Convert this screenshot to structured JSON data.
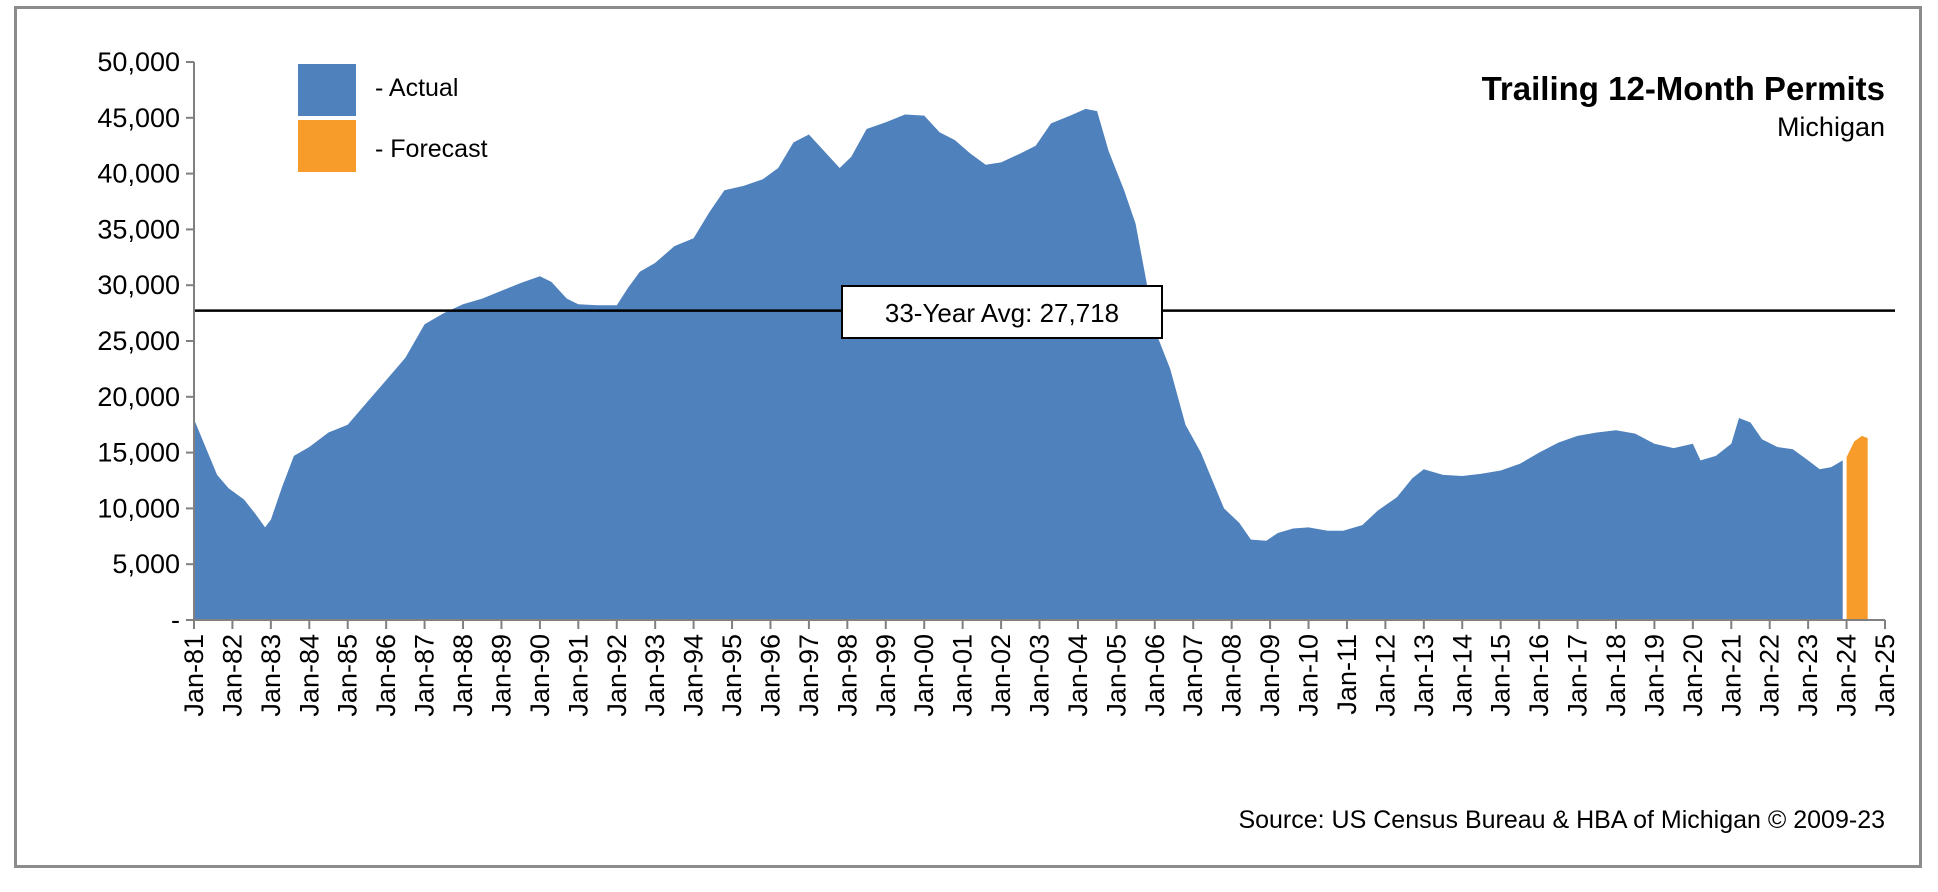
{
  "chart_data": {
    "type": "area",
    "title": "Trailing 12-Month Permits",
    "subtitle": "Michigan",
    "source": "Source: US Census Bureau & HBA of Michigan © 2009-23",
    "ylim": [
      0,
      50000
    ],
    "y_ticks": [
      {
        "value": 0,
        "label": "-"
      },
      {
        "value": 5000,
        "label": "5,000"
      },
      {
        "value": 10000,
        "label": "10,000"
      },
      {
        "value": 15000,
        "label": "15,000"
      },
      {
        "value": 20000,
        "label": "20,000"
      },
      {
        "value": 25000,
        "label": "25,000"
      },
      {
        "value": 30000,
        "label": "30,000"
      },
      {
        "value": 35000,
        "label": "35,000"
      },
      {
        "value": 40000,
        "label": "40,000"
      },
      {
        "value": 45000,
        "label": "45,000"
      },
      {
        "value": 50000,
        "label": "50,000"
      }
    ],
    "xlim": [
      1981,
      2025
    ],
    "x_ticks": [
      "Jan-81",
      "Jan-82",
      "Jan-83",
      "Jan-84",
      "Jan-85",
      "Jan-86",
      "Jan-87",
      "Jan-88",
      "Jan-89",
      "Jan-90",
      "Jan-91",
      "Jan-92",
      "Jan-93",
      "Jan-94",
      "Jan-95",
      "Jan-96",
      "Jan-97",
      "Jan-98",
      "Jan-99",
      "Jan-00",
      "Jan-01",
      "Jan-02",
      "Jan-03",
      "Jan-04",
      "Jan-05",
      "Jan-06",
      "Jan-07",
      "Jan-08",
      "Jan-09",
      "Jan-10",
      "Jan-11",
      "Jan-12",
      "Jan-13",
      "Jan-14",
      "Jan-15",
      "Jan-16",
      "Jan-17",
      "Jan-18",
      "Jan-19",
      "Jan-20",
      "Jan-21",
      "Jan-22",
      "Jan-23",
      "Jan-24",
      "Jan-25"
    ],
    "legend": [
      {
        "name": "- Actual",
        "color": "#4f81bd"
      },
      {
        "name": "- Forecast",
        "color": "#f79b2a"
      }
    ],
    "average": {
      "value": 27718,
      "label": "33-Year Avg: 27,718"
    },
    "series": [
      {
        "name": "Actual",
        "color": "#4f81bd",
        "points": [
          [
            1981.0,
            18000
          ],
          [
            1981.3,
            15500
          ],
          [
            1981.6,
            13000
          ],
          [
            1981.9,
            11800
          ],
          [
            1982.3,
            10800
          ],
          [
            1982.6,
            9500
          ],
          [
            1982.85,
            8300
          ],
          [
            1983.0,
            9000
          ],
          [
            1983.3,
            12000
          ],
          [
            1983.6,
            14700
          ],
          [
            1984.0,
            15500
          ],
          [
            1984.5,
            16800
          ],
          [
            1985.0,
            17500
          ],
          [
            1985.5,
            19500
          ],
          [
            1986.0,
            21500
          ],
          [
            1986.5,
            23500
          ],
          [
            1987.0,
            26500
          ],
          [
            1987.5,
            27500
          ],
          [
            1988.0,
            28300
          ],
          [
            1988.5,
            28800
          ],
          [
            1989.0,
            29500
          ],
          [
            1989.5,
            30200
          ],
          [
            1990.0,
            30800
          ],
          [
            1990.3,
            30300
          ],
          [
            1990.7,
            28800
          ],
          [
            1991.0,
            28300
          ],
          [
            1991.5,
            28200
          ],
          [
            1992.0,
            28200
          ],
          [
            1992.3,
            29800
          ],
          [
            1992.6,
            31200
          ],
          [
            1993.0,
            32000
          ],
          [
            1993.5,
            33500
          ],
          [
            1994.0,
            34200
          ],
          [
            1994.4,
            36500
          ],
          [
            1994.8,
            38500
          ],
          [
            1995.3,
            38900
          ],
          [
            1995.8,
            39500
          ],
          [
            1996.2,
            40500
          ],
          [
            1996.6,
            42800
          ],
          [
            1997.0,
            43500
          ],
          [
            1997.4,
            42000
          ],
          [
            1997.8,
            40500
          ],
          [
            1998.1,
            41500
          ],
          [
            1998.5,
            44000
          ],
          [
            1999.0,
            44600
          ],
          [
            1999.5,
            45300
          ],
          [
            2000.0,
            45200
          ],
          [
            2000.4,
            43700
          ],
          [
            2000.8,
            43000
          ],
          [
            2001.2,
            41800
          ],
          [
            2001.6,
            40800
          ],
          [
            2002.0,
            41000
          ],
          [
            2002.5,
            41800
          ],
          [
            2002.9,
            42500
          ],
          [
            2003.3,
            44500
          ],
          [
            2003.8,
            45200
          ],
          [
            2004.2,
            45800
          ],
          [
            2004.5,
            45600
          ],
          [
            2004.8,
            42000
          ],
          [
            2005.2,
            38500
          ],
          [
            2005.5,
            35500
          ],
          [
            2005.8,
            30000
          ],
          [
            2006.0,
            26000
          ],
          [
            2006.4,
            22500
          ],
          [
            2006.8,
            17500
          ],
          [
            2007.2,
            15000
          ],
          [
            2007.5,
            12500
          ],
          [
            2007.8,
            10000
          ],
          [
            2008.2,
            8700
          ],
          [
            2008.5,
            7200
          ],
          [
            2008.9,
            7100
          ],
          [
            2009.2,
            7800
          ],
          [
            2009.6,
            8200
          ],
          [
            2010.0,
            8300
          ],
          [
            2010.5,
            8000
          ],
          [
            2010.9,
            8000
          ],
          [
            2011.4,
            8500
          ],
          [
            2011.8,
            9800
          ],
          [
            2012.3,
            11000
          ],
          [
            2012.7,
            12700
          ],
          [
            2013.0,
            13500
          ],
          [
            2013.5,
            13000
          ],
          [
            2014.0,
            12900
          ],
          [
            2014.5,
            13100
          ],
          [
            2015.0,
            13400
          ],
          [
            2015.5,
            14000
          ],
          [
            2016.0,
            15000
          ],
          [
            2016.5,
            15900
          ],
          [
            2017.0,
            16500
          ],
          [
            2017.5,
            16800
          ],
          [
            2018.0,
            17000
          ],
          [
            2018.5,
            16700
          ],
          [
            2019.0,
            15800
          ],
          [
            2019.5,
            15400
          ],
          [
            2020.0,
            15800
          ],
          [
            2020.2,
            14300
          ],
          [
            2020.6,
            14700
          ],
          [
            2021.0,
            15800
          ],
          [
            2021.2,
            18100
          ],
          [
            2021.5,
            17700
          ],
          [
            2021.8,
            16200
          ],
          [
            2022.2,
            15500
          ],
          [
            2022.6,
            15300
          ],
          [
            2023.0,
            14300
          ],
          [
            2023.3,
            13500
          ],
          [
            2023.6,
            13700
          ],
          [
            2023.9,
            14300
          ]
        ]
      },
      {
        "name": "Forecast",
        "color": "#f79b2a",
        "points": [
          [
            2024.0,
            14600
          ],
          [
            2024.2,
            16000
          ],
          [
            2024.4,
            16500
          ],
          [
            2024.55,
            16300
          ]
        ]
      }
    ]
  }
}
